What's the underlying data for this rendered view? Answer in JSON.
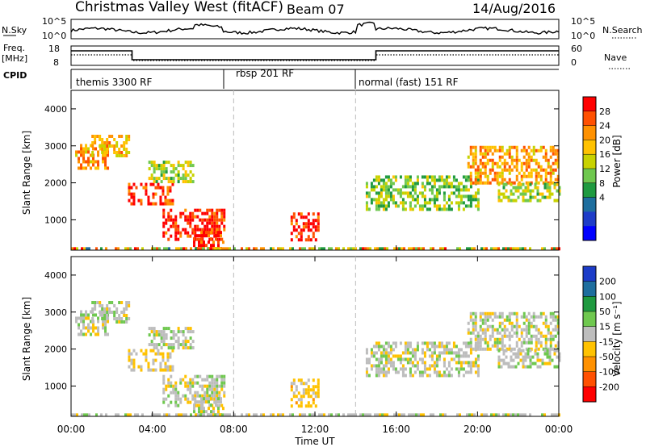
{
  "header": {
    "title": "Christmas Valley West (fitACF)",
    "beam": "Beam 07",
    "date": "14/Aug/2016"
  },
  "nsky_panel": {
    "label": "N.Sky",
    "left_ticks": [
      "10^5",
      "10^0"
    ],
    "right_ticks": [
      "10^5",
      "10^0"
    ],
    "right_label": "N.Search"
  },
  "freq_panel": {
    "label_line1": "Freq.",
    "label_line2": "[MHz]",
    "left_ticks": [
      "18",
      "8"
    ],
    "right_ticks": [
      "60",
      "0"
    ],
    "right_label": "Nave"
  },
  "cpid_panel": {
    "label": "CPID",
    "modes": [
      "themis 3300 RF",
      "rbsp 201 RF",
      "normal (fast) 151 RF"
    ]
  },
  "axes": {
    "ylabel": "Slant Range [km]",
    "yticks": [
      "4000",
      "3000",
      "2000",
      "1000"
    ],
    "xticks": [
      "00:00",
      "04:00",
      "08:00",
      "12:00",
      "16:00",
      "20:00",
      "00:00"
    ],
    "xlabel": "Time UT"
  },
  "power_colorbar": {
    "label": "Power [dB]",
    "ticks": [
      "28",
      "24",
      "20",
      "16",
      "12",
      "8",
      "4"
    ],
    "colors": [
      "#ff0000",
      "#ff5000",
      "#ff9100",
      "#ffc200",
      "#c8d200",
      "#6fc84f",
      "#1f9a40",
      "#1e6e9e",
      "#1e3cc8",
      "#0000ff"
    ]
  },
  "velocity_colorbar": {
    "label": "Velocity [m s⁻¹]",
    "ticks": [
      "200",
      "100",
      "50",
      "15",
      "-15",
      "-50",
      "-100",
      "-200"
    ],
    "colors": [
      "#1c3cc8",
      "#1e6e9e",
      "#1f9a40",
      "#6fc84f",
      "#bdbdbd",
      "#ffc200",
      "#ff9100",
      "#ff5000",
      "#ff0000"
    ]
  },
  "chart_data": {
    "type": "heatmap",
    "x_range_hours": [
      0,
      24
    ],
    "y_range_km": [
      180,
      4500
    ],
    "mode_boundaries_hours": [
      8.0,
      14.0
    ],
    "frequency_steps": [
      {
        "start": 0,
        "end": 3.0,
        "level": "high"
      },
      {
        "start": 3.0,
        "end": 15.0,
        "level": "low"
      },
      {
        "start": 15.0,
        "end": 24.0,
        "level": "high"
      }
    ],
    "scatter_regions": [
      {
        "t0": 0.2,
        "t1": 1.8,
        "r0": 2400,
        "r1": 3050,
        "power": 22,
        "velocity": 0
      },
      {
        "t0": 1.0,
        "t1": 2.8,
        "r0": 2700,
        "r1": 3300,
        "power": 20,
        "velocity": 0
      },
      {
        "t0": 2.8,
        "t1": 5.0,
        "r0": 1450,
        "r1": 2000,
        "power": 26,
        "velocity": -20
      },
      {
        "t0": 3.8,
        "t1": 6.0,
        "r0": 2000,
        "r1": 2600,
        "power": 16,
        "velocity": 0
      },
      {
        "t0": 4.5,
        "t1": 7.5,
        "r0": 500,
        "r1": 1300,
        "power": 28,
        "velocity": 0
      },
      {
        "t0": 6.0,
        "t1": 7.5,
        "r0": 200,
        "r1": 700,
        "power": 28,
        "velocity": 0
      },
      {
        "t0": 10.8,
        "t1": 12.2,
        "r0": 500,
        "r1": 1200,
        "power": 28,
        "velocity": -30
      },
      {
        "t0": 14.5,
        "t1": 20.0,
        "r0": 1300,
        "r1": 2200,
        "power": 14,
        "velocity": 0
      },
      {
        "t0": 19.5,
        "t1": 24.0,
        "r0": 2000,
        "r1": 3000,
        "power": 22,
        "velocity": 0
      },
      {
        "t0": 21.0,
        "t1": 24.0,
        "r0": 1500,
        "r1": 2000,
        "power": 16,
        "velocity": 0
      }
    ]
  }
}
